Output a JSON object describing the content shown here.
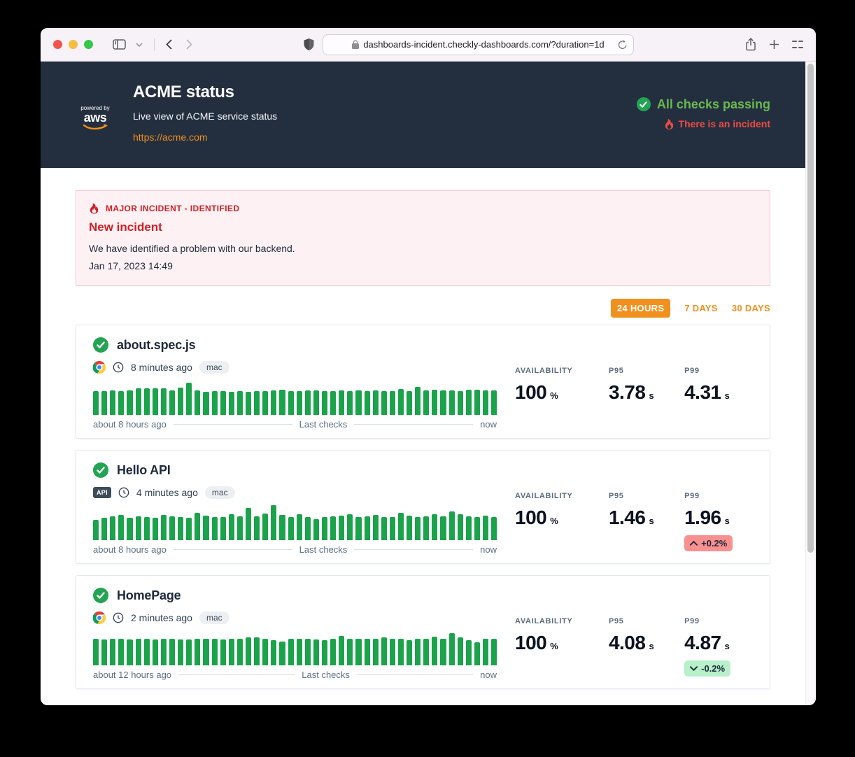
{
  "browser": {
    "url": "dashboards-incident.checkly-dashboards.com/?duration=1d"
  },
  "header": {
    "logo_powered_by": "powered by",
    "logo_brand": "aws",
    "title": "ACME status",
    "subtitle": "Live view of ACME service status",
    "link": "https://acme.com",
    "status_ok": "All checks passing",
    "status_incident": "There is an incident"
  },
  "incident": {
    "tag": "MAJOR INCIDENT - IDENTIFIED",
    "title": "New incident",
    "message": "We have identified a problem with our backend.",
    "timestamp": "Jan 17, 2023 14:49"
  },
  "time_range": {
    "selected": "24 HOURS",
    "option_1": "24 HOURS",
    "option_2": "7 DAYS",
    "option_3": "30 DAYS"
  },
  "metric_labels": {
    "availability": "AVAILABILITY",
    "p95": "P95",
    "p99": "P99"
  },
  "units": {
    "percent": "%",
    "seconds": "s"
  },
  "checks": [
    {
      "name": "about.spec.js",
      "runner": "chrome",
      "last_run": "8 minutes ago",
      "tag": "mac",
      "availability": "100",
      "p95": "3.78",
      "p99": "4.31",
      "chart": {
        "start_label": "about 8 hours ago",
        "mid_label": "Last checks",
        "end_label": "now",
        "bars": [
          34,
          34,
          35,
          34,
          35,
          38,
          38,
          38,
          38,
          35,
          39,
          46,
          35,
          33,
          34,
          34,
          33,
          34,
          33,
          34,
          34,
          35,
          36,
          34,
          34,
          35,
          35,
          34,
          34,
          35,
          34,
          35,
          34,
          35,
          34,
          34,
          37,
          34,
          40,
          35,
          36,
          35,
          35,
          34,
          36,
          36,
          35,
          35
        ]
      }
    },
    {
      "name": "Hello API",
      "runner": "api",
      "type_badge": "API",
      "last_run": "4 minutes ago",
      "tag": "mac",
      "availability": "100",
      "p95": "1.46",
      "p99": "1.96",
      "trend": {
        "direction": "up",
        "label": "+0.2%"
      },
      "chart": {
        "start_label": "about 8 hours ago",
        "mid_label": "Last checks",
        "end_label": "now",
        "bars": [
          29,
          32,
          34,
          36,
          32,
          34,
          33,
          32,
          36,
          34,
          33,
          32,
          39,
          35,
          33,
          33,
          37,
          34,
          46,
          34,
          38,
          50,
          36,
          33,
          37,
          33,
          30,
          33,
          34,
          35,
          37,
          33,
          34,
          36,
          33,
          33,
          39,
          35,
          33,
          34,
          37,
          34,
          41,
          37,
          34,
          33,
          35,
          33
        ]
      }
    },
    {
      "name": "HomePage",
      "runner": "chrome",
      "last_run": "2 minutes ago",
      "tag": "mac",
      "availability": "100",
      "p95": "4.08",
      "p99": "4.87",
      "trend": {
        "direction": "down",
        "label": "-0.2%"
      },
      "chart": {
        "start_label": "about 12 hours ago",
        "mid_label": "Last checks",
        "end_label": "now",
        "bars": [
          38,
          37,
          38,
          38,
          37,
          38,
          38,
          37,
          38,
          38,
          37,
          37,
          38,
          38,
          38,
          37,
          38,
          38,
          40,
          40,
          38,
          36,
          34,
          38,
          38,
          38,
          37,
          36,
          38,
          42,
          38,
          38,
          38,
          38,
          40,
          38,
          38,
          36,
          38,
          38,
          41,
          38,
          46,
          40,
          36,
          33,
          38,
          38
        ]
      }
    }
  ],
  "colors": {
    "accent_orange": "#F0901E",
    "brand_navy": "#232F3E",
    "bar_green": "#1AA34A",
    "status_green": "#6CB852",
    "status_red": "#EF4B47",
    "incident_red": "#D21F26",
    "incident_bg": "#FDF1F3",
    "trend_up_bg": "#F99090",
    "trend_down_bg": "#B7F0C9"
  }
}
